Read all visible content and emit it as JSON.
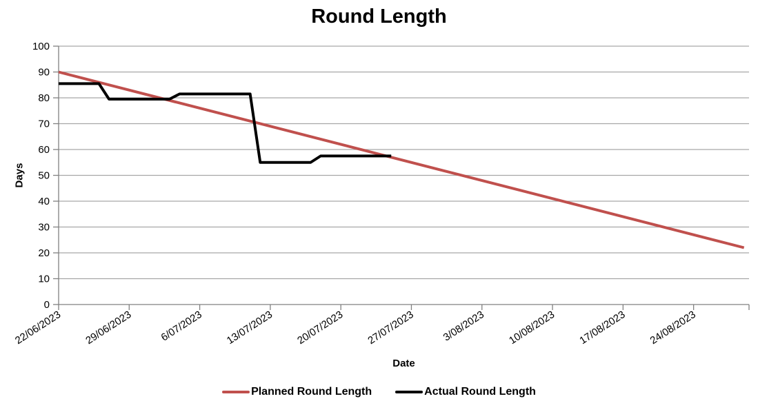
{
  "chart_data": {
    "type": "line",
    "title": "Round Length",
    "xlabel": "Date",
    "ylabel": "Days",
    "ylim": [
      0,
      100
    ],
    "y_tick_step": 10,
    "y_tick_labels": [
      "0",
      "10",
      "20",
      "30",
      "40",
      "50",
      "60",
      "70",
      "80",
      "90",
      "100"
    ],
    "x_tick_labels": [
      "22/06/2023",
      "29/06/2023",
      "6/07/2023",
      "13/07/2023",
      "20/07/2023",
      "27/07/2023",
      "3/08/2023",
      "10/08/2023",
      "17/08/2023",
      "24/08/2023"
    ],
    "x_tick_interval_days": 7,
    "x_domain_days": 68.5,
    "x_label_rotation_deg": -33,
    "grid": true,
    "legend_position": "bottom",
    "colors": {
      "gridline": "#A6A6A6",
      "axis": "#808080",
      "text": "#000000"
    },
    "series": [
      {
        "name": "Planned Round Length",
        "color": "#C0504D",
        "stroke_width": 4,
        "points": [
          {
            "date": "22/06/2023",
            "day": 0,
            "value": 90
          },
          {
            "date": "29/08/2023",
            "day": 68,
            "value": 22
          }
        ]
      },
      {
        "name": "Actual Round Length",
        "color": "#000000",
        "stroke_width": 4,
        "points": [
          {
            "date": "22/06/2023",
            "day": 0,
            "value": 85.5
          },
          {
            "date": "26/06/2023",
            "day": 4,
            "value": 85.5
          },
          {
            "date": "27/06/2023",
            "day": 5,
            "value": 79.5
          },
          {
            "date": "3/07/2023",
            "day": 11,
            "value": 79.5
          },
          {
            "date": "4/07/2023",
            "day": 12,
            "value": 81.5
          },
          {
            "date": "11/07/2023",
            "day": 19,
            "value": 81.5
          },
          {
            "date": "12/07/2023",
            "day": 20,
            "value": 55
          },
          {
            "date": "17/07/2023",
            "day": 25,
            "value": 55
          },
          {
            "date": "18/07/2023",
            "day": 26,
            "value": 57.5
          },
          {
            "date": "25/07/2023",
            "day": 33,
            "value": 57.5
          }
        ]
      }
    ]
  },
  "legend": {
    "items": [
      {
        "label": "Planned Round Length",
        "color": "#C0504D"
      },
      {
        "label": "Actual Round Length",
        "color": "#000000"
      }
    ]
  }
}
